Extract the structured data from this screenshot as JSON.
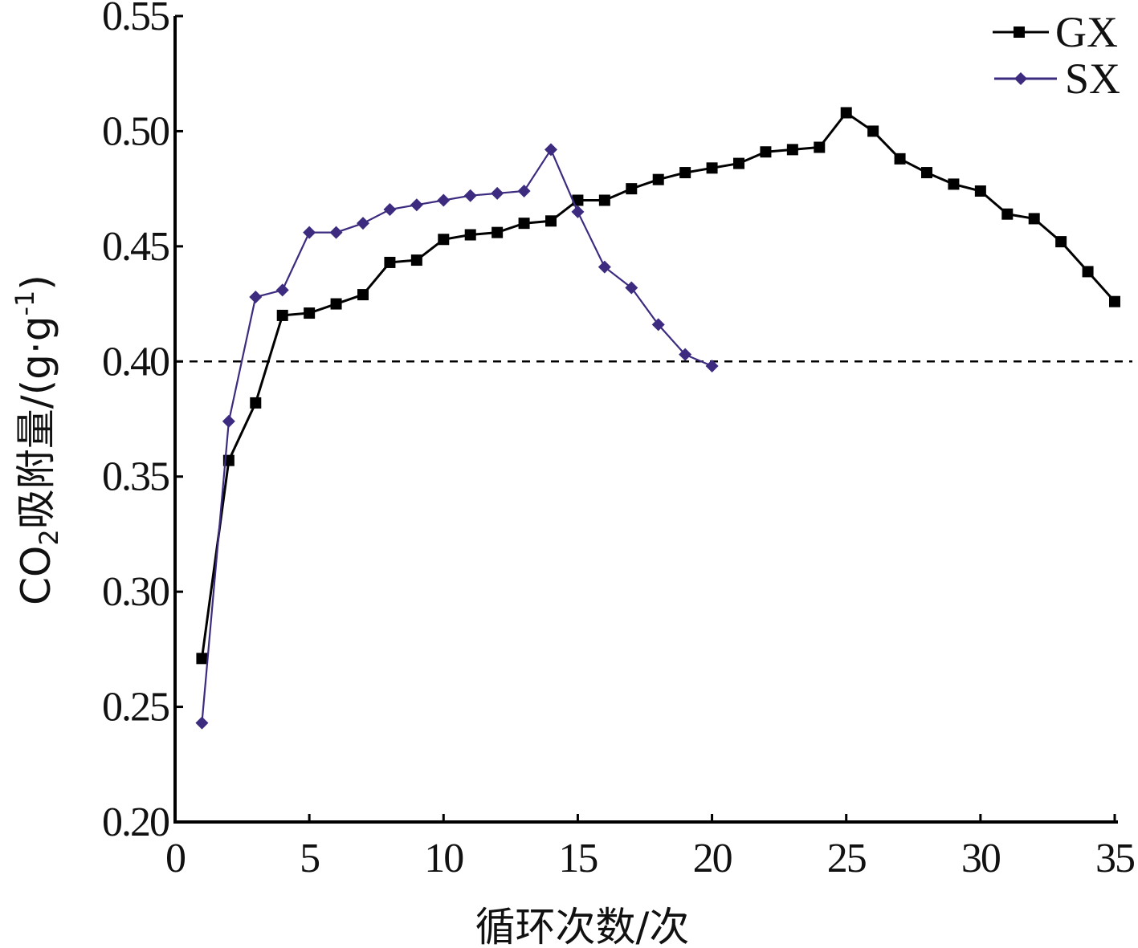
{
  "chart_data": {
    "type": "line",
    "x_ticks": [
      "0",
      "5",
      "10",
      "15",
      "20",
      "25",
      "30",
      "35"
    ],
    "y_ticks": [
      "0.20",
      "0.25",
      "0.30",
      "0.35",
      "0.40",
      "0.45",
      "0.50",
      "0.55"
    ],
    "xlabel": "循环次数/次",
    "ylabel": {
      "prefix": "CO",
      "sub": "2",
      "mid": "吸附量/(g·g",
      "sup": "-1",
      "suffix": ")"
    },
    "xlim": [
      0,
      35
    ],
    "ylim": [
      0.2,
      0.55
    ],
    "reference_line": {
      "y": 0.4,
      "style": "dashed"
    },
    "legend_position": "top-right",
    "series": [
      {
        "name": "GX",
        "color": "#000000",
        "marker": "square",
        "x": [
          1,
          2,
          3,
          4,
          5,
          6,
          7,
          8,
          9,
          10,
          11,
          12,
          13,
          14,
          15,
          16,
          17,
          18,
          19,
          20,
          21,
          22,
          23,
          24,
          25,
          26,
          27,
          28,
          29,
          30,
          31,
          32,
          33,
          34,
          35
        ],
        "y": [
          0.271,
          0.357,
          0.382,
          0.42,
          0.421,
          0.425,
          0.429,
          0.443,
          0.444,
          0.453,
          0.455,
          0.456,
          0.46,
          0.461,
          0.47,
          0.47,
          0.475,
          0.479,
          0.482,
          0.484,
          0.486,
          0.491,
          0.492,
          0.493,
          0.508,
          0.5,
          0.488,
          0.482,
          0.477,
          0.474,
          0.464,
          0.462,
          0.452,
          0.439,
          0.426
        ]
      },
      {
        "name": "SX",
        "color": "#3d2b80",
        "marker": "diamond",
        "x": [
          1,
          2,
          3,
          4,
          5,
          6,
          7,
          8,
          9,
          10,
          11,
          12,
          13,
          14,
          15,
          16,
          17,
          18,
          19,
          20
        ],
        "y": [
          0.243,
          0.374,
          0.428,
          0.431,
          0.456,
          0.456,
          0.46,
          0.466,
          0.468,
          0.47,
          0.472,
          0.473,
          0.474,
          0.492,
          0.465,
          0.441,
          0.432,
          0.416,
          0.403,
          0.398
        ]
      }
    ]
  }
}
